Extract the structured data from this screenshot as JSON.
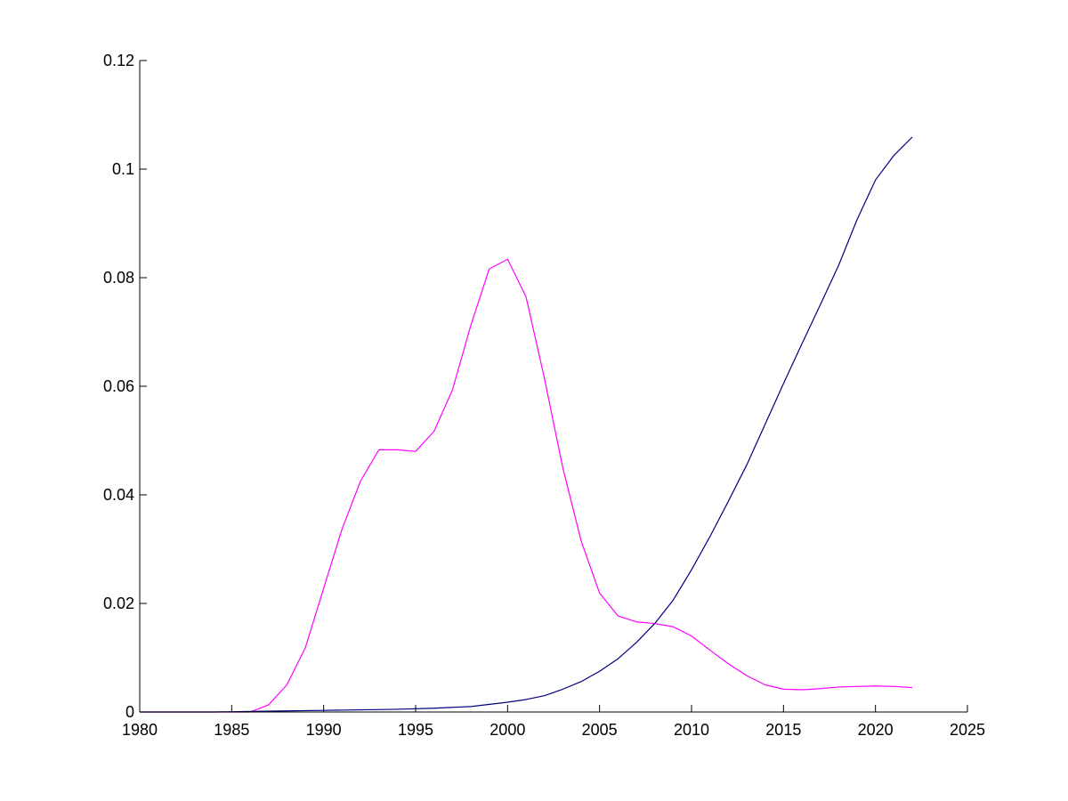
{
  "chart_data": {
    "type": "line",
    "title": "",
    "xlabel": "",
    "ylabel": "",
    "xlim": [
      1980,
      2025
    ],
    "ylim": [
      0,
      0.12
    ],
    "grid": false,
    "xticks": [
      1980,
      1985,
      1990,
      1995,
      2000,
      2005,
      2010,
      2015,
      2020,
      2025
    ],
    "xtick_labels": [
      "1980",
      "1985",
      "1990",
      "1995",
      "2000",
      "2005",
      "2010",
      "2015",
      "2020",
      "2025"
    ],
    "yticks": [
      0,
      0.02,
      0.04,
      0.06,
      0.08,
      0.1,
      0.12
    ],
    "ytick_labels": [
      "0",
      "0.02",
      "0.04",
      "0.06",
      "0.08",
      "0.1",
      "0.12"
    ],
    "series": [
      {
        "color": "#ff00ff",
        "x": [
          1980,
          1981,
          1982,
          1983,
          1984,
          1985,
          1986,
          1987,
          1988,
          1989,
          1990,
          1991,
          1992,
          1993,
          1994,
          1995,
          1996,
          1997,
          1998,
          1999,
          2000,
          2001,
          2002,
          2003,
          2004,
          2005,
          2006,
          2007,
          2008,
          2009,
          2010,
          2011,
          2012,
          2013,
          2014,
          2015,
          2016,
          2017,
          2018,
          2019,
          2020,
          2021,
          2022
        ],
        "y": [
          0,
          0,
          0,
          0,
          0,
          0,
          0,
          0.0013,
          0.005,
          0.0118,
          0.0228,
          0.0337,
          0.0425,
          0.0483,
          0.0483,
          0.048,
          0.0517,
          0.0593,
          0.0712,
          0.0816,
          0.0834,
          0.0765,
          0.0615,
          0.045,
          0.0315,
          0.0219,
          0.0177,
          0.0166,
          0.0163,
          0.0157,
          0.014,
          0.0114,
          0.0089,
          0.0067,
          0.005,
          0.0042,
          0.0041,
          0.0043,
          0.0046,
          0.0047,
          0.0048,
          0.0047,
          0.0045
        ]
      },
      {
        "color": "#000080",
        "x": [
          1980,
          1982,
          1984,
          1986,
          1988,
          1990,
          1992,
          1994,
          1996,
          1998,
          2000,
          2001,
          2002,
          2003,
          2004,
          2005,
          2006,
          2007,
          2008,
          2009,
          2010,
          2011,
          2012,
          2013,
          2014,
          2015,
          2016,
          2017,
          2018,
          2019,
          2020,
          2021,
          2022
        ],
        "y": [
          0,
          0,
          0,
          0.0001,
          0.0002,
          0.0003,
          0.0004,
          0.0005,
          0.0007,
          0.001,
          0.0018,
          0.0023,
          0.003,
          0.0042,
          0.0056,
          0.0075,
          0.0098,
          0.0128,
          0.0163,
          0.0206,
          0.0262,
          0.0323,
          0.0388,
          0.0455,
          0.053,
          0.0605,
          0.0678,
          0.075,
          0.0823,
          0.0907,
          0.098,
          0.1025,
          0.1059
        ]
      }
    ]
  }
}
